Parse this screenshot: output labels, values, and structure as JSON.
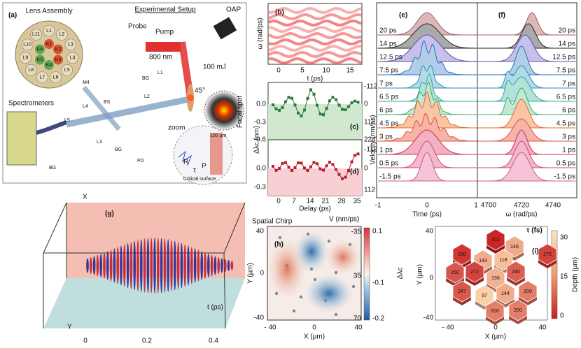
{
  "panel_labels": [
    "(a)",
    "(b)",
    "(c)",
    "(d)",
    "(e)",
    "(f)",
    "(g)",
    "(h)",
    "(i)"
  ],
  "setup": {
    "lens_title": "Lens Assembly",
    "title": "Experimental Setup",
    "probe": "Probe",
    "pump": "Pump",
    "wavelength": "800 nm",
    "energy": "100 mJ",
    "oap": "OAP",
    "angle": "45°",
    "focal": "Focal spot",
    "scale": "100 µm",
    "zoom": "zoom",
    "critical": "Critical surface",
    "spectrometers": "Spectrometers",
    "optics": [
      "M4",
      "L1",
      "BG",
      "L2",
      "BS",
      "L4",
      "L5",
      "BG",
      "L3",
      "BG",
      "PD"
    ],
    "lenses_outer": [
      "L1",
      "L2",
      "L3",
      "L4",
      "L5",
      "L6",
      "L7",
      "L8",
      "L9",
      "L10",
      "L11"
    ],
    "lenses_inner": [
      "K1",
      "K2",
      "K3",
      "K4",
      "K5",
      "K6"
    ],
    "zoom_labels": [
      "R",
      "τ",
      "P"
    ]
  },
  "b": {
    "ylabel": "ω (rad/ps)",
    "xlabel": "t (ps)",
    "xticks": [
      "0",
      "5",
      "10",
      "15"
    ]
  },
  "cd": {
    "ylabel": "Δλc (nm)",
    "y2label": "Velocity (nm/ps)",
    "xlabel": "Delay (ps)",
    "c_yticks": [
      "0.0",
      "-0.3",
      "-0.6"
    ],
    "c_y2ticks": [
      "-112",
      "0",
      "112",
      "224"
    ],
    "d_yticks": [
      "0.0",
      "-0.3"
    ],
    "d_y2ticks": [
      "-112",
      "0",
      "112"
    ],
    "xticks": [
      "0",
      "7",
      "14",
      "21",
      "28",
      "35"
    ]
  },
  "e": {
    "rows": [
      "20 ps",
      "14 ps",
      "12.5 ps",
      "7.5 ps",
      "7 ps",
      "6.5 ps",
      "6 ps",
      "4.5 ps",
      "3 ps",
      "1 ps",
      "0.5 ps",
      "-1.5 ps"
    ],
    "xticks": [
      "-1",
      "0",
      "1"
    ],
    "xlabel": "Time (ps)"
  },
  "f": {
    "xticks": [
      "4700",
      "4720",
      "4740"
    ],
    "xlabel": "ω (rad/ps)"
  },
  "g": {
    "axis_x": "X",
    "axis_y": "Y",
    "axis_t": "t (ps)",
    "ticks": [
      "0",
      "0.2",
      "0.4"
    ]
  },
  "h": {
    "title": "Spatial Chirp",
    "vlabel": "V (nm/ps)",
    "yticks": [
      "40",
      "0",
      "-40"
    ],
    "xticks": [
      "- 40",
      "0",
      "40"
    ],
    "ylabel": "Y (µm)",
    "xlabel": "X (µm)",
    "cbar_ticks": [
      "0.1",
      "-0.1",
      "-0.2"
    ],
    "cbar_label": "Δλc",
    "v_ticks": [
      "-35",
      "35",
      "70"
    ]
  },
  "i": {
    "cells": [
      "311",
      "146",
      "290",
      "275",
      "143",
      "118",
      "250",
      "272",
      "240",
      "136",
      "247",
      "144",
      "200",
      "97",
      "200",
      "200"
    ],
    "title": "τ (fs)",
    "cbar_ticks": [
      "30",
      "15",
      "0"
    ],
    "cbar_label": "Depth (µm)",
    "yticks": [
      "40",
      "0",
      "-40"
    ],
    "xticks": [
      "- 40",
      "0",
      "40"
    ],
    "ylabel": "Y (µm)",
    "xlabel": "X (µm)"
  }
}
